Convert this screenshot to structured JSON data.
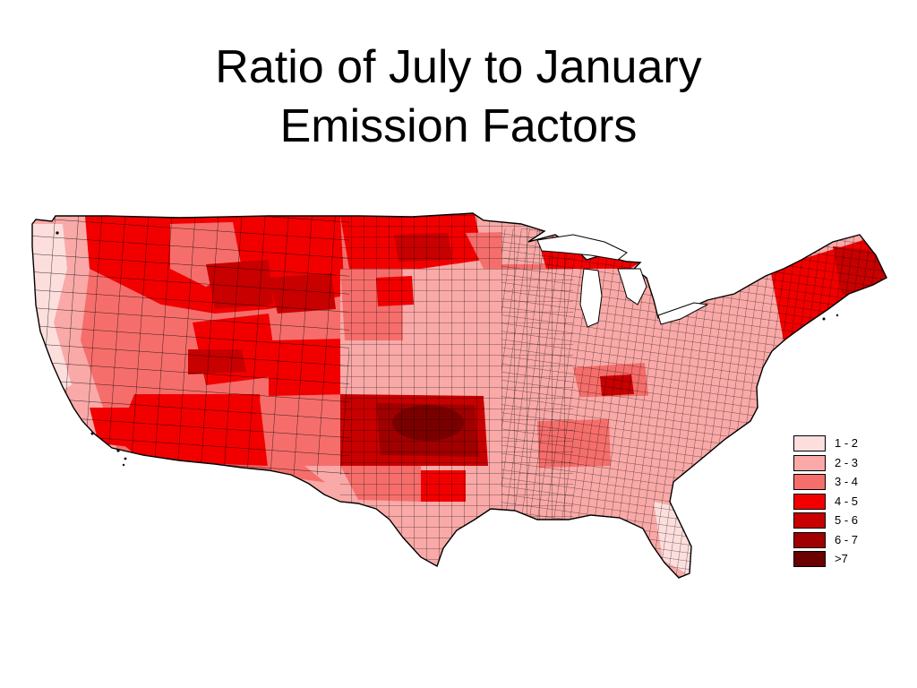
{
  "title": {
    "line1": "Ratio of July to January",
    "line2": "Emission Factors"
  },
  "map": {
    "subject": "United States counties",
    "outline_color": "#000000",
    "background": "#ffffff"
  },
  "legend": {
    "items": [
      {
        "label": "1 - 2",
        "color": "#fcdedd"
      },
      {
        "label": "2 - 3",
        "color": "#f9a9a7"
      },
      {
        "label": "3 - 4",
        "color": "#f56e6b"
      },
      {
        "label": "4 - 5",
        "color": "#f20000"
      },
      {
        "label": "5 - 6",
        "color": "#c80000"
      },
      {
        "label": "6 - 7",
        "color": "#a00000"
      },
      {
        "label": ">7",
        "color": "#6a0000"
      }
    ]
  }
}
